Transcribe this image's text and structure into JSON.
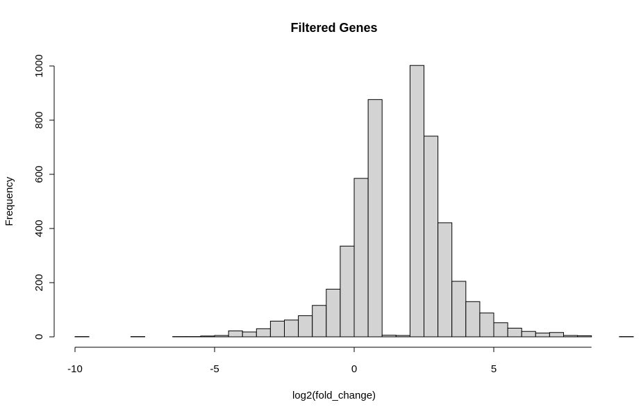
{
  "chart_data": {
    "type": "bar",
    "title": "Filtered Genes",
    "xlabel": "log2(fold_change)",
    "ylabel": "Frequency",
    "bin_width": 0.5,
    "bin_start": -10,
    "xlim": [
      -10,
      8.5
    ],
    "ylim": [
      0,
      1000
    ],
    "xticks": [
      -10,
      -5,
      0,
      5
    ],
    "yticks": [
      0,
      200,
      400,
      600,
      800,
      1000
    ],
    "values": [
      1,
      0,
      0,
      0,
      1,
      0,
      0,
      1,
      1,
      3,
      5,
      22,
      18,
      30,
      58,
      62,
      78,
      116,
      176,
      335,
      585,
      876,
      6,
      5,
      1002,
      741,
      421,
      205,
      130,
      88,
      52,
      32,
      20,
      14,
      16,
      5,
      4,
      0,
      0,
      1
    ],
    "bar_color": "#d3d3d3",
    "edge_color": "#000000",
    "grid": false
  }
}
